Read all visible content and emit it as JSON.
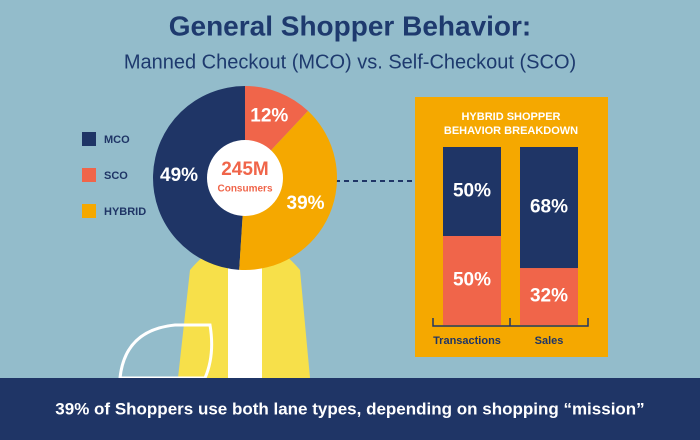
{
  "chart_data": [
    {
      "type": "donut",
      "title": "General Shopper Behavior:",
      "subtitle": "Manned Checkout (MCO) vs. Self-Checkout (SCO)",
      "center_label": [
        "245M",
        "Consumers"
      ],
      "categories": [
        "MCO",
        "SCO",
        "HYBRID"
      ],
      "values": [
        49,
        12,
        39
      ],
      "value_labels": [
        "49%",
        "12%",
        "39%"
      ],
      "colors": [
        "#1f3566",
        "#f0654a",
        "#f5a800"
      ],
      "caption": "39% of Shoppers use both lane types, depending on shopping “mission”"
    },
    {
      "type": "stacked-bar",
      "title": [
        "HYBRID SHOPPER",
        "BEHAVIOR BREAKDOWN"
      ],
      "categories": [
        "Transactions",
        "Sales"
      ],
      "ylim": [
        0,
        100
      ],
      "series": [
        {
          "color": "#f0654a",
          "values": [
            50,
            32
          ],
          "value_labels": [
            "50%",
            "32%"
          ]
        },
        {
          "color": "#1f3566",
          "values": [
            50,
            68
          ],
          "value_labels": [
            "50%",
            "68%"
          ]
        }
      ]
    }
  ]
}
